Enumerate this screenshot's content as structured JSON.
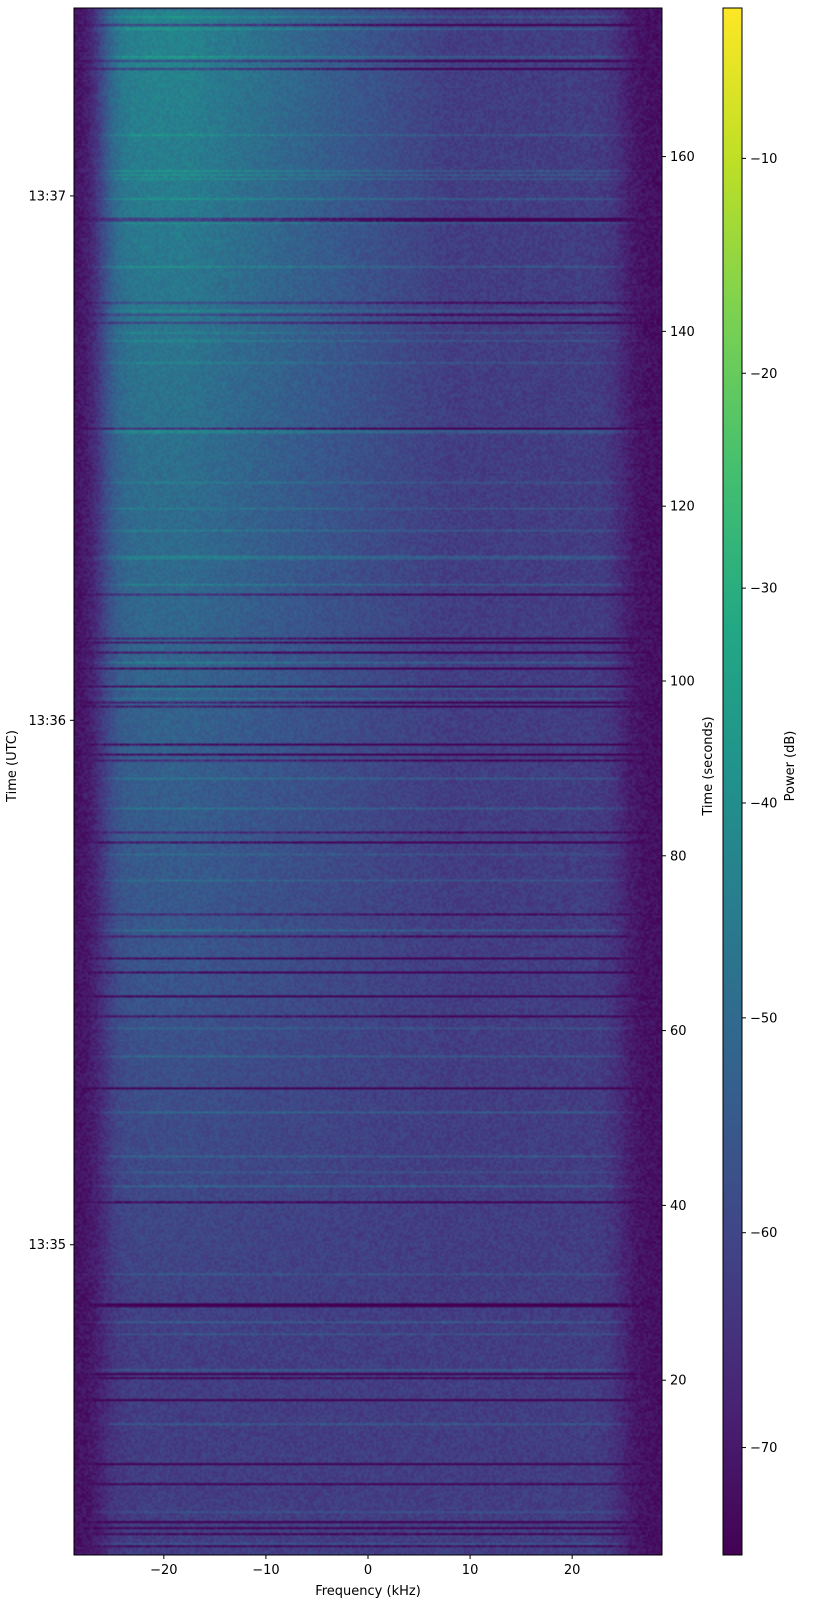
{
  "chart_data": {
    "type": "heatmap",
    "xlabel": "Frequency (kHz)",
    "ylabel_left": "Time (UTC)",
    "ylabel_right": "Time (seconds)",
    "colorbar_label": "Power (dB)",
    "colormap": "viridis",
    "x_range_khz": [
      -28.8,
      28.8
    ],
    "x_ticks": [
      -20,
      -10,
      0,
      10,
      20
    ],
    "x_tick_labels": [
      "−20",
      "−10",
      "0",
      "10",
      "20"
    ],
    "time_range_seconds": [
      0,
      177
    ],
    "right_ticks": [
      20,
      40,
      60,
      80,
      100,
      120,
      140,
      160
    ],
    "right_tick_labels": [
      "20",
      "40",
      "60",
      "80",
      "100",
      "120",
      "140",
      "160"
    ],
    "left_ticks_seconds": [
      35.5,
      95.5,
      155.5
    ],
    "left_tick_labels": [
      "13:35",
      "13:36",
      "13:37"
    ],
    "colorbar_range_db": [
      -75,
      -3
    ],
    "colorbar_ticks": [
      -70,
      -60,
      -50,
      -40,
      -30,
      -20,
      -10
    ],
    "colorbar_tick_labels": [
      "−70",
      "−60",
      "−50",
      "−40",
      "−30",
      "−20",
      "−10"
    ],
    "spectral_profile": {
      "noise_floor_db": -72,
      "in_band_db_early": -62,
      "in_band_db_late_left": -42,
      "passband_khz": [
        -26,
        25
      ]
    }
  }
}
